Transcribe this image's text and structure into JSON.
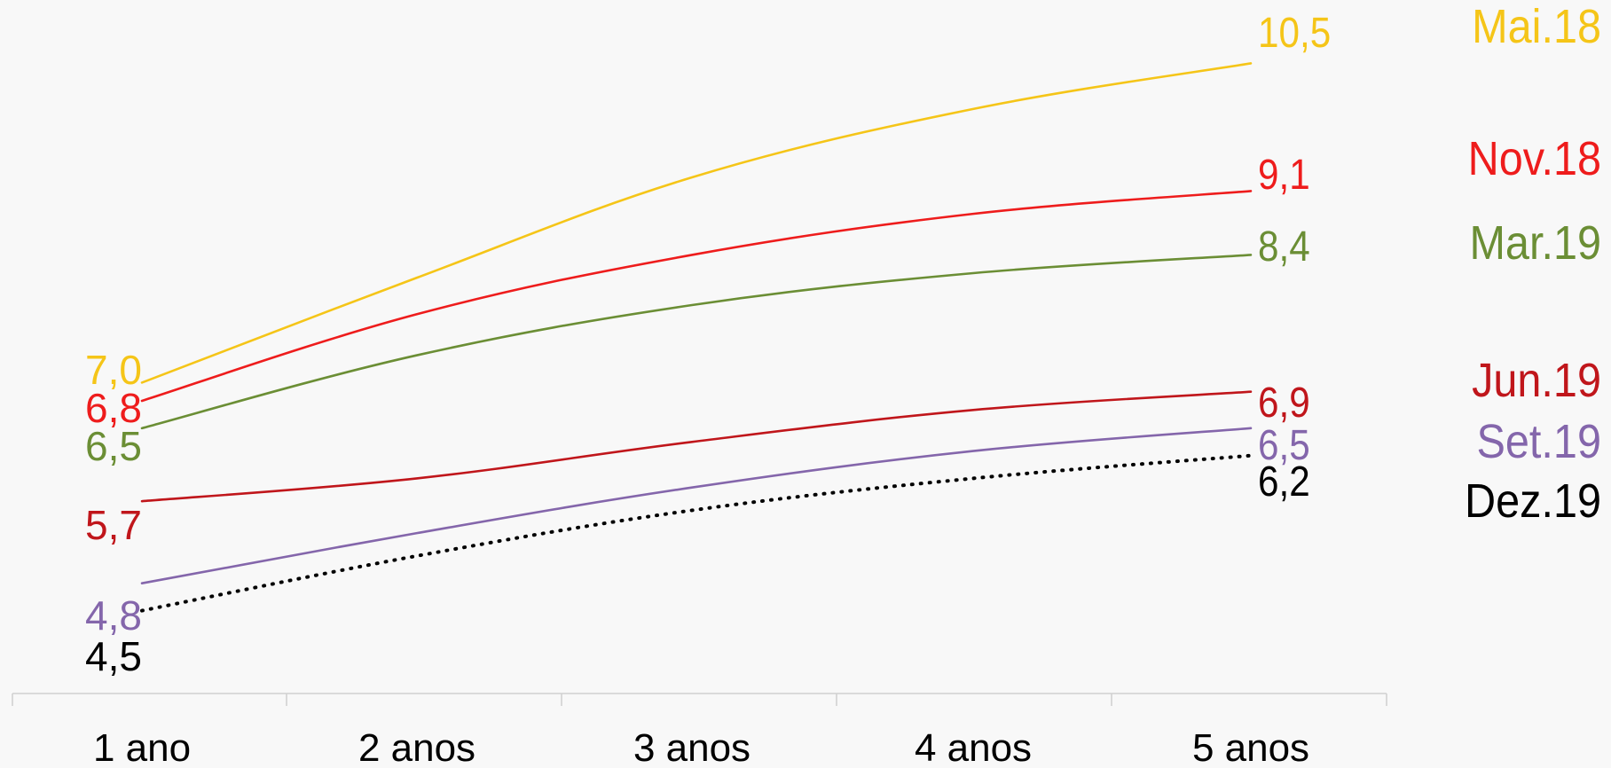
{
  "chart_data": {
    "type": "line",
    "title": "",
    "xlabel": "",
    "ylabel": "",
    "categories": [
      "1 ano",
      "2 anos",
      "3 anos",
      "4 anos",
      "5 anos"
    ],
    "ylim": [
      4.0,
      11.0
    ],
    "grid": false,
    "legend_position": "right",
    "series": [
      {
        "name": "Mai.18",
        "color": "#f5c518",
        "style": "solid",
        "values": [
          7.0,
          8.15,
          9.25,
          10.0,
          10.5
        ],
        "start_label": "7,0",
        "end_label": "10,5"
      },
      {
        "name": "Nov.18",
        "color": "#ee1c1c",
        "style": "solid",
        "values": [
          6.8,
          7.75,
          8.4,
          8.85,
          9.1
        ],
        "start_label": "6,8",
        "end_label": "9,1"
      },
      {
        "name": "Mar.19",
        "color": "#6b8e35",
        "style": "solid",
        "values": [
          6.5,
          7.3,
          7.85,
          8.2,
          8.4
        ],
        "start_label": "6,5",
        "end_label": "8,4"
      },
      {
        "name": "Jun.19",
        "color": "#c0161b",
        "style": "solid",
        "values": [
          5.7,
          5.95,
          6.35,
          6.7,
          6.9
        ],
        "start_label": "5,7",
        "end_label": "6,9"
      },
      {
        "name": "Set.19",
        "color": "#8466ab",
        "style": "solid",
        "values": [
          4.8,
          5.35,
          5.85,
          6.25,
          6.5
        ],
        "start_label": "4,8",
        "end_label": "6,5"
      },
      {
        "name": "Dez.19",
        "color": "#000000",
        "style": "dotted",
        "values": [
          4.5,
          5.1,
          5.6,
          5.95,
          6.2
        ],
        "start_label": "4,5",
        "end_label": "6,2"
      }
    ]
  }
}
